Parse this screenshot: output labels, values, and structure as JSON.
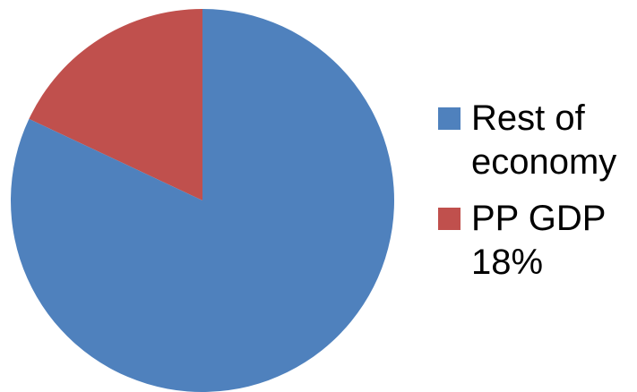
{
  "chart_data": {
    "type": "pie",
    "title": "",
    "legend_position": "right",
    "slices": [
      {
        "label": "Rest of economy",
        "value": 82,
        "color": "#4F81BD"
      },
      {
        "label": "PP GDP 18%",
        "value": 18,
        "color": "#C0504D"
      }
    ]
  },
  "legend": {
    "items": [
      {
        "label": "Rest of economy",
        "color": "#4F81BD"
      },
      {
        "label": "PP GDP 18%",
        "color": "#C0504D"
      }
    ]
  }
}
